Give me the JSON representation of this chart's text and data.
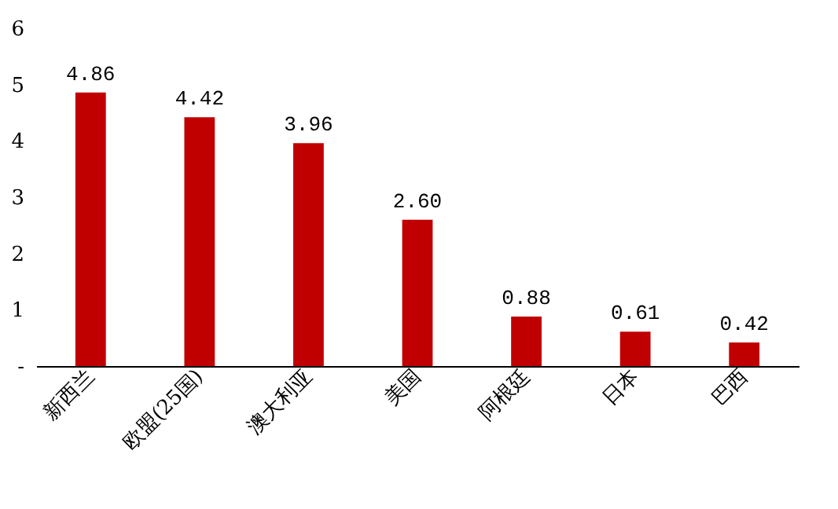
{
  "chart_data": {
    "type": "bar",
    "categories": [
      "新西兰",
      "欧盟(25国)",
      "澳大利亚",
      "美国",
      "阿根廷",
      "日本",
      "巴西"
    ],
    "values": [
      4.86,
      4.42,
      3.96,
      2.6,
      0.88,
      0.61,
      0.42
    ],
    "value_labels": [
      "4.86",
      "4.42",
      "3.96",
      "2.60",
      "0.88",
      "0.61",
      "0.42"
    ],
    "color": "#c00000",
    "ylim": [
      0,
      6
    ],
    "yticks": [
      {
        "value": 0,
        "label": "-"
      },
      1,
      2,
      3,
      4,
      5,
      6
    ],
    "grid": false
  }
}
